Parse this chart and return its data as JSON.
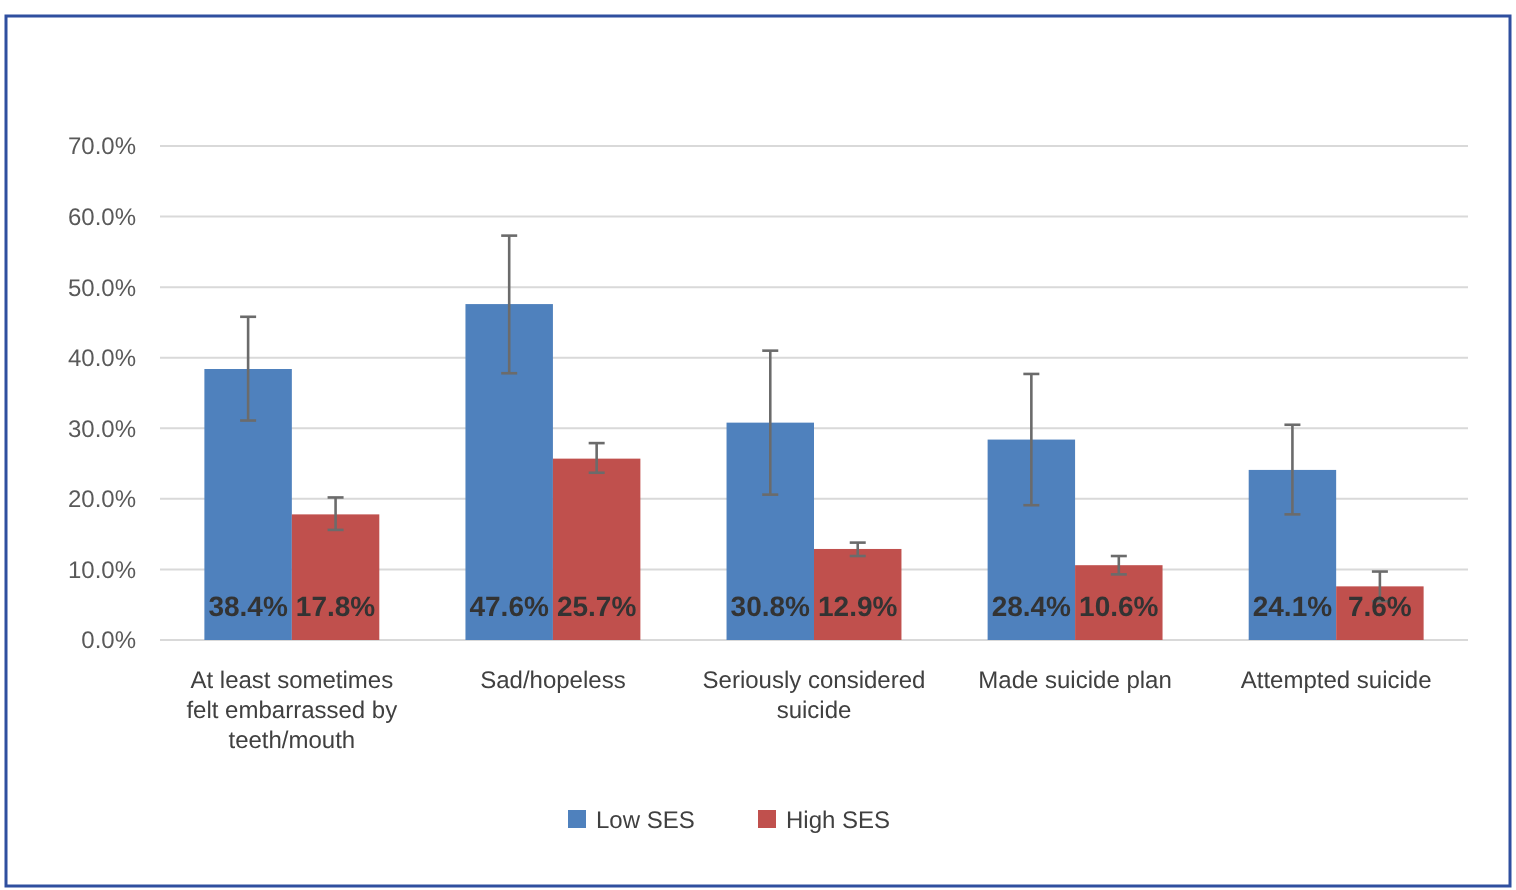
{
  "chart_data": {
    "type": "bar",
    "categories": [
      "At least sometimes felt embarrassed by teeth/mouth",
      "Sad/hopeless",
      "Seriously considered suicide",
      "Made suicide plan",
      "Attempted suicide"
    ],
    "series": [
      {
        "name": "Low SES",
        "color": "#4f81bd",
        "values": [
          38.4,
          47.6,
          30.8,
          28.4,
          24.1
        ],
        "value_labels": [
          "38.4%",
          "47.6%",
          "30.8%",
          "28.4%",
          "24.1%"
        ],
        "errors": [
          [
            31.1,
            45.8
          ],
          [
            37.8,
            57.3
          ],
          [
            20.6,
            41.0
          ],
          [
            19.1,
            37.7
          ],
          [
            17.8,
            30.5
          ]
        ]
      },
      {
        "name": "High SES",
        "color": "#c0504d",
        "values": [
          17.8,
          25.7,
          12.9,
          10.6,
          7.6
        ],
        "value_labels": [
          "17.8%",
          "25.7%",
          "12.9%",
          "10.6%",
          "7.6%"
        ],
        "errors": [
          [
            15.6,
            20.2
          ],
          [
            23.7,
            27.9
          ],
          [
            11.9,
            13.8
          ],
          [
            9.3,
            11.9
          ],
          [
            5.5,
            9.7
          ]
        ]
      }
    ],
    "ylim": [
      0,
      70
    ],
    "yticks": [
      {
        "value": 0,
        "label": "0.0%"
      },
      {
        "value": 10,
        "label": "10.0%"
      },
      {
        "value": 20,
        "label": "20.0%"
      },
      {
        "value": 30,
        "label": "30.0%"
      },
      {
        "value": 40,
        "label": "40.0%"
      },
      {
        "value": 50,
        "label": "50.0%"
      },
      {
        "value": 60,
        "label": "60.0%"
      },
      {
        "value": 70,
        "label": "70.0%"
      }
    ],
    "grid": "y",
    "legend": "bottom"
  }
}
